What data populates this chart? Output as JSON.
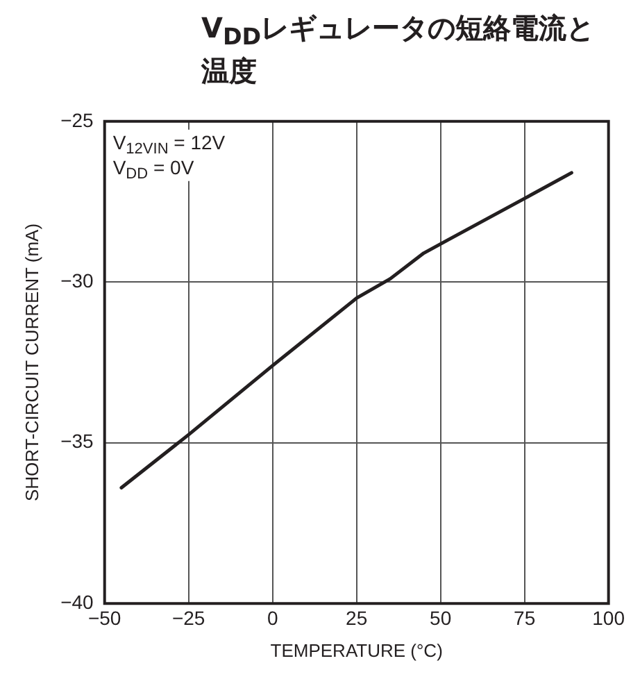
{
  "chart_data": {
    "type": "line",
    "title": "V$_{DD}$レギュレータの短絡電流と温度",
    "xlabel": "TEMPERATURE (°C)",
    "ylabel": "SHORT-CIRCUIT CURRENT (mA)",
    "annotations": [
      "V$_{12VIN}$ = 12V",
      "V$_{DD}$ = 0V"
    ],
    "series": [
      {
        "color": "#231f20",
        "x": [
          -45,
          -25,
          0,
          25,
          35,
          45,
          52,
          75,
          89
        ],
        "values": [
          -36.4,
          -34.75,
          -32.6,
          -30.5,
          -29.9,
          -29.1,
          -28.7,
          -27.4,
          -26.6
        ]
      }
    ],
    "xlim": [
      -50,
      100
    ],
    "xticks": [
      -50,
      -25,
      0,
      25,
      50,
      75,
      100
    ],
    "ylim": [
      -40,
      -25
    ],
    "yticks": [
      -40,
      -35,
      -30,
      -25
    ],
    "grid": true,
    "legend": false,
    "marker": "none",
    "line_style": "solid"
  }
}
